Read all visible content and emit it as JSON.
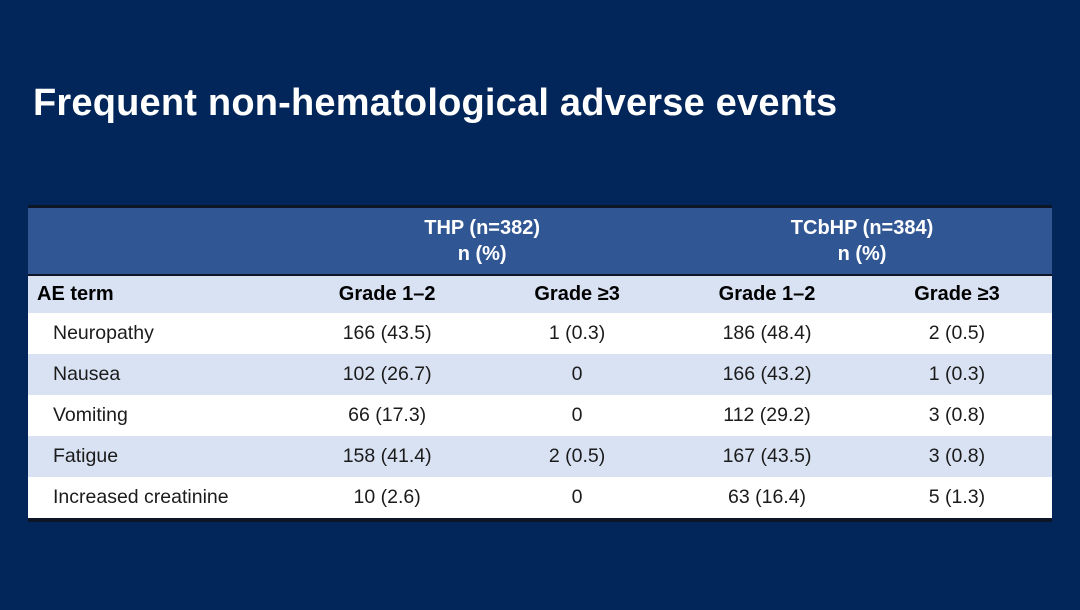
{
  "slide": {
    "title": "Frequent non-hematological adverse events",
    "background_color": "#02265a"
  },
  "table": {
    "group_headers": [
      {
        "line1": "THP (n=382)",
        "line2": "n (%)"
      },
      {
        "line1": "TCbHP (n=384)",
        "line2": "n (%)"
      }
    ],
    "columns": [
      "AE term",
      "Grade 1–2",
      "Grade ≥3",
      "Grade 1–2",
      "Grade ≥3"
    ],
    "rows": [
      {
        "ae_term": "Neuropathy",
        "values": [
          "166 (43.5)",
          "1 (0.3)",
          "186 (48.4)",
          "2 (0.5)"
        ]
      },
      {
        "ae_term": "Nausea",
        "values": [
          "102 (26.7)",
          "0",
          "166 (43.2)",
          "1 (0.3)"
        ]
      },
      {
        "ae_term": "Vomiting",
        "values": [
          "66 (17.3)",
          "0",
          "112 (29.2)",
          "3 (0.8)"
        ]
      },
      {
        "ae_term": "Fatigue",
        "values": [
          "158 (41.4)",
          "2 (0.5)",
          "167 (43.5)",
          "3 (0.8)"
        ]
      },
      {
        "ae_term": "Increased creatinine",
        "values": [
          "10 (2.6)",
          "0",
          "63 (16.4)",
          "5 (1.3)"
        ]
      }
    ],
    "colors": {
      "group_header_bg": "#315694",
      "group_header_text": "#ffffff",
      "subheader_bg": "#d9e2f3",
      "row_bg": "#ffffff",
      "row_alt_bg": "#d9e2f3",
      "border_dark": "#0d1526",
      "data_text": "#1b1b1b"
    }
  }
}
